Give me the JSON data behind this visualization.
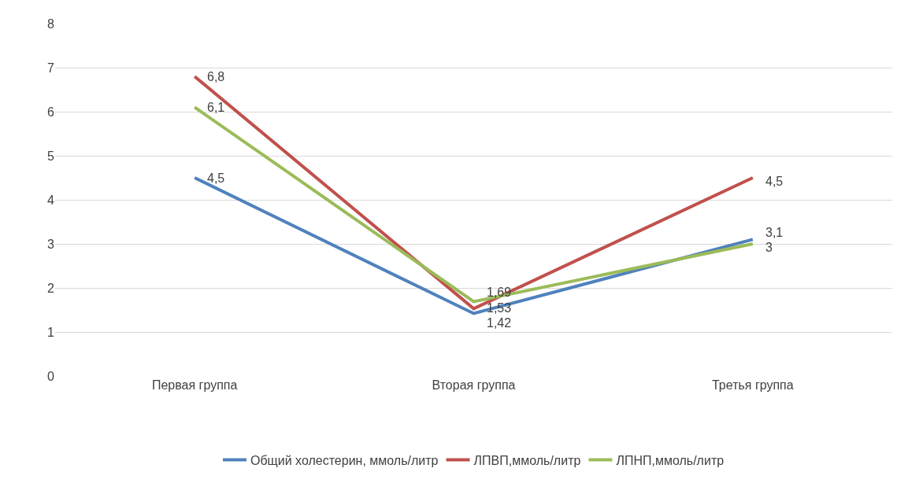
{
  "chart_data": {
    "type": "line",
    "categories": [
      "Первая группа",
      "Вторая группа",
      "Третья группа"
    ],
    "series": [
      {
        "name": "Общий холестерин, ммоль/литр",
        "color": "#4f81bd",
        "values": [
          4.5,
          1.42,
          3.1
        ],
        "value_labels": [
          "4,5",
          "1,42",
          "3,1"
        ]
      },
      {
        "name": "ЛПВП,ммоль/литр",
        "color": "#c0504d",
        "values": [
          6.8,
          1.53,
          4.5
        ],
        "value_labels": [
          "6,8",
          "1,53",
          "4,5"
        ]
      },
      {
        "name": "ЛПНП,ммоль/литр",
        "color": "#9bbb59",
        "values": [
          6.1,
          1.69,
          3
        ],
        "value_labels": [
          "6,1",
          "1,69",
          "3"
        ]
      }
    ],
    "ylim": [
      0,
      8
    ],
    "yticks": [
      0,
      1,
      2,
      3,
      4,
      5,
      6,
      7,
      8
    ],
    "grid": "y",
    "legend": "bottom",
    "marker": "none",
    "line_style": "solid"
  }
}
